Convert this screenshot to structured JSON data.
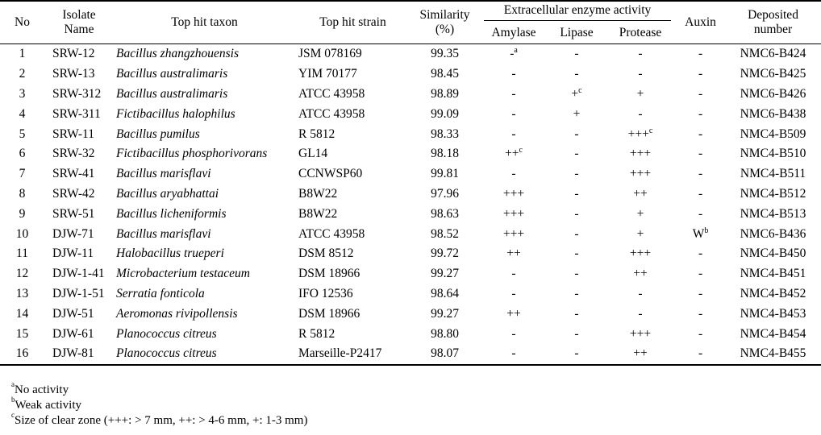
{
  "headers": {
    "no": "No",
    "isolate": "Isolate Name",
    "taxon": "Top hit taxon",
    "strain": "Top hit strain",
    "similarity": "Similarity (%)",
    "enzyme_group": "Extracellular enzyme activity",
    "amylase": "Amylase",
    "lipase": "Lipase",
    "protease": "Protease",
    "auxin": "Auxin",
    "deposited": "Deposited number"
  },
  "rows": [
    {
      "no": "1",
      "isolate": "SRW-12",
      "taxon": "Bacillus zhangzhouensis",
      "strain": "JSM 078169",
      "similarity": "99.35",
      "amylase": "-",
      "amylase_sup": "a",
      "lipase": "-",
      "lipase_sup": "",
      "protease": "-",
      "protease_sup": "",
      "auxin": "-",
      "auxin_sup": "",
      "deposited": "NMC6-B424"
    },
    {
      "no": "2",
      "isolate": "SRW-13",
      "taxon": "Bacillus australimaris",
      "strain": "YIM 70177",
      "similarity": "98.45",
      "amylase": "-",
      "amylase_sup": "",
      "lipase": "-",
      "lipase_sup": "",
      "protease": "-",
      "protease_sup": "",
      "auxin": "-",
      "auxin_sup": "",
      "deposited": "NMC6-B425"
    },
    {
      "no": "3",
      "isolate": "SRW-312",
      "taxon": "Bacillus australimaris",
      "strain": "ATCC 43958",
      "similarity": "98.89",
      "amylase": "-",
      "amylase_sup": "",
      "lipase": "+",
      "lipase_sup": "c",
      "protease": "+",
      "protease_sup": "",
      "auxin": "-",
      "auxin_sup": "",
      "deposited": "NMC6-B426"
    },
    {
      "no": "4",
      "isolate": "SRW-311",
      "taxon": "Fictibacillus halophilus",
      "strain": "ATCC 43958",
      "similarity": "99.09",
      "amylase": "-",
      "amylase_sup": "",
      "lipase": "+",
      "lipase_sup": "",
      "protease": "-",
      "protease_sup": "",
      "auxin": "-",
      "auxin_sup": "",
      "deposited": "NMC6-B438"
    },
    {
      "no": "5",
      "isolate": "SRW-11",
      "taxon": "Bacillus pumilus",
      "strain": "R 5812",
      "similarity": "98.33",
      "amylase": "-",
      "amylase_sup": "",
      "lipase": "-",
      "lipase_sup": "",
      "protease": "+++",
      "protease_sup": "c",
      "auxin": "-",
      "auxin_sup": "",
      "deposited": "NMC4-B509"
    },
    {
      "no": "6",
      "isolate": "SRW-32",
      "taxon": "Fictibacillus phosphorivorans",
      "strain": "GL14",
      "similarity": "98.18",
      "amylase": "++",
      "amylase_sup": "c",
      "lipase": "-",
      "lipase_sup": "",
      "protease": "+++",
      "protease_sup": "",
      "auxin": "-",
      "auxin_sup": "",
      "deposited": "NMC4-B510"
    },
    {
      "no": "7",
      "isolate": "SRW-41",
      "taxon": "Bacillus marisflavi",
      "strain": "CCNWSP60",
      "similarity": "99.81",
      "amylase": "-",
      "amylase_sup": "",
      "lipase": "-",
      "lipase_sup": "",
      "protease": "+++",
      "protease_sup": "",
      "auxin": "-",
      "auxin_sup": "",
      "deposited": "NMC4-B511"
    },
    {
      "no": "8",
      "isolate": "SRW-42",
      "taxon": "Bacillus aryabhattai",
      "strain": "B8W22",
      "similarity": "97.96",
      "amylase": "+++",
      "amylase_sup": "",
      "lipase": "-",
      "lipase_sup": "",
      "protease": "++",
      "protease_sup": "",
      "auxin": "-",
      "auxin_sup": "",
      "deposited": "NMC4-B512"
    },
    {
      "no": "9",
      "isolate": "SRW-51",
      "taxon": "Bacillus licheniformis",
      "strain": "B8W22",
      "similarity": "98.63",
      "amylase": "+++",
      "amylase_sup": "",
      "lipase": "-",
      "lipase_sup": "",
      "protease": "+",
      "protease_sup": "",
      "auxin": "-",
      "auxin_sup": "",
      "deposited": "NMC4-B513"
    },
    {
      "no": "10",
      "isolate": "DJW-71",
      "taxon": "Bacillus marisflavi",
      "strain": "ATCC 43958",
      "similarity": "98.52",
      "amylase": "+++",
      "amylase_sup": "",
      "lipase": "-",
      "lipase_sup": "",
      "protease": "+",
      "protease_sup": "",
      "auxin": "W",
      "auxin_sup": "b",
      "deposited": "NMC6-B436"
    },
    {
      "no": "11",
      "isolate": "DJW-11",
      "taxon": "Halobacillus trueperi",
      "strain": "DSM 8512",
      "similarity": "99.72",
      "amylase": "++",
      "amylase_sup": "",
      "lipase": "-",
      "lipase_sup": "",
      "protease": "+++",
      "protease_sup": "",
      "auxin": "-",
      "auxin_sup": "",
      "deposited": "NMC4-B450"
    },
    {
      "no": "12",
      "isolate": "DJW-1-41",
      "taxon": "Microbacterium testaceum",
      "strain": "DSM 18966",
      "similarity": "99.27",
      "amylase": "-",
      "amylase_sup": "",
      "lipase": "-",
      "lipase_sup": "",
      "protease": "++",
      "protease_sup": "",
      "auxin": "-",
      "auxin_sup": "",
      "deposited": "NMC4-B451"
    },
    {
      "no": "13",
      "isolate": "DJW-1-51",
      "taxon": "Serratia fonticola",
      "strain": "IFO 12536",
      "similarity": "98.64",
      "amylase": "-",
      "amylase_sup": "",
      "lipase": "-",
      "lipase_sup": "",
      "protease": "-",
      "protease_sup": "",
      "auxin": "-",
      "auxin_sup": "",
      "deposited": "NMC4-B452"
    },
    {
      "no": "14",
      "isolate": "DJW-51",
      "taxon": "Aeromonas rivipollensis",
      "strain": "DSM 18966",
      "similarity": "99.27",
      "amylase": "++",
      "amylase_sup": "",
      "lipase": "-",
      "lipase_sup": "",
      "protease": "-",
      "protease_sup": "",
      "auxin": "-",
      "auxin_sup": "",
      "deposited": "NMC4-B453"
    },
    {
      "no": "15",
      "isolate": "DJW-61",
      "taxon": "Planococcus citreus",
      "strain": "R 5812",
      "similarity": "98.80",
      "amylase": "-",
      "amylase_sup": "",
      "lipase": "-",
      "lipase_sup": "",
      "protease": "+++",
      "protease_sup": "",
      "auxin": "-",
      "auxin_sup": "",
      "deposited": "NMC4-B454"
    },
    {
      "no": "16",
      "isolate": "DJW-81",
      "taxon": "Planococcus citreus",
      "strain": "Marseille-P2417",
      "similarity": "98.07",
      "amylase": "-",
      "amylase_sup": "",
      "lipase": "-",
      "lipase_sup": "",
      "protease": "++",
      "protease_sup": "",
      "auxin": "-",
      "auxin_sup": "",
      "deposited": "NMC4-B455"
    }
  ],
  "footnotes": [
    {
      "mark": "a",
      "text": "No activity"
    },
    {
      "mark": "b",
      "text": "Weak activity"
    },
    {
      "mark": "c",
      "text": "Size of clear zone (+++: > 7 mm, ++: > 4-6 mm, +: 1-3 mm)"
    }
  ]
}
